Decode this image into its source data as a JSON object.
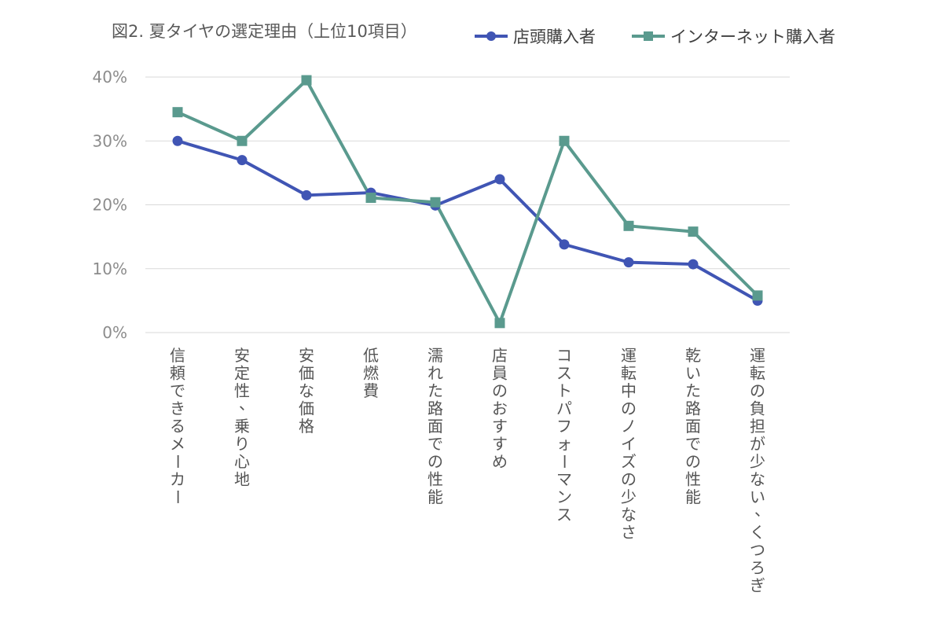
{
  "chart_data": {
    "type": "line",
    "title": "図2. 夏タイヤの選定理由（上位10項目）",
    "xlabel": "",
    "ylabel": "",
    "ylim": [
      0,
      0.4
    ],
    "yticks": [
      "0%",
      "10%",
      "20%",
      "30%",
      "40%"
    ],
    "grid": true,
    "legend_position": "top-right",
    "categories": [
      "信頼できるメーカー",
      "安定性、乗り心地",
      "安価な価格",
      "低燃費",
      "濡れた路面での性能",
      "店員のおすすめ",
      "コストパフォーマンス",
      "運転中のノイズの少なさ",
      "乾いた路面での性能",
      "運転の負担が少ない、くつろぎ"
    ],
    "series": [
      {
        "name": "店頭購入者",
        "color": "#4055b4",
        "marker": "circle",
        "values": [
          0.3,
          0.27,
          0.215,
          0.219,
          0.199,
          0.24,
          0.138,
          0.11,
          0.107,
          0.05
        ]
      },
      {
        "name": "インターネット購入者",
        "color": "#5a9a8e",
        "marker": "square",
        "values": [
          0.345,
          0.3,
          0.395,
          0.211,
          0.204,
          0.015,
          0.3,
          0.167,
          0.158,
          0.058
        ]
      }
    ]
  }
}
